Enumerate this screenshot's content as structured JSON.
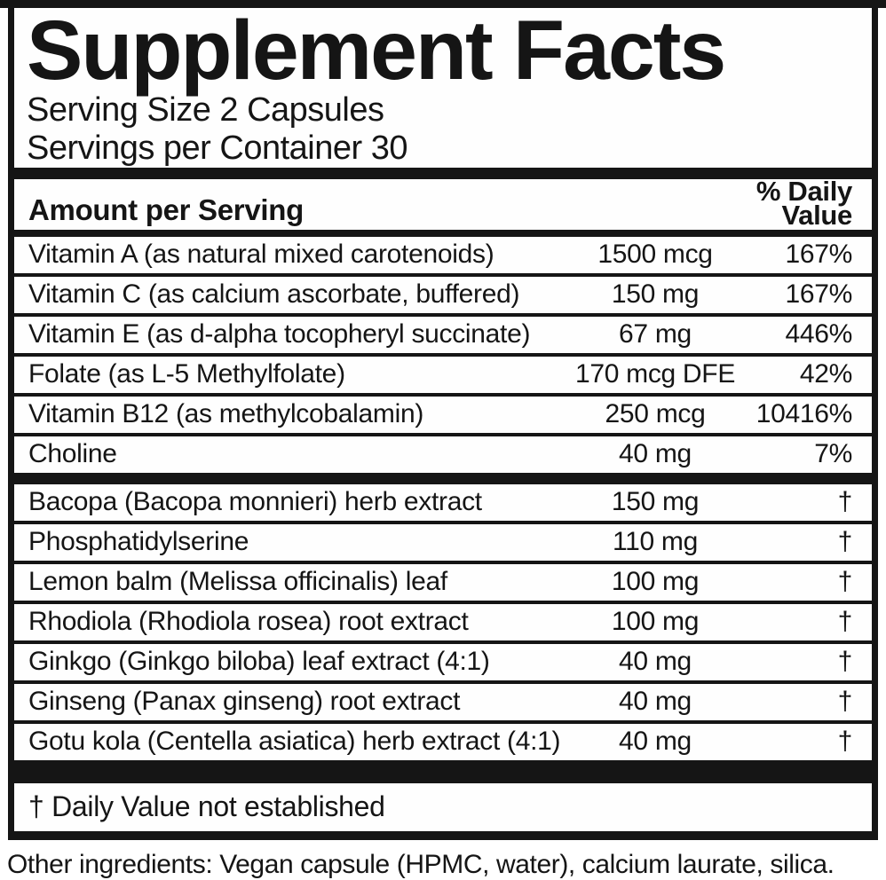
{
  "label": {
    "title": "Supplement Facts",
    "serving_size": "Serving Size 2 Capsules",
    "servings_per_container": "Servings per Container 30",
    "column_headers": {
      "amount_per_serving": "Amount per Serving",
      "daily_value_line1": "% Daily",
      "daily_value_line2": "Value"
    },
    "rows_vitamins": [
      {
        "name": "Vitamin A (as natural mixed carotenoids)",
        "amount": "1500 mcg",
        "dv": "167%"
      },
      {
        "name": "Vitamin C (as calcium ascorbate, buffered)",
        "amount": "150 mg",
        "dv": "167%"
      },
      {
        "name": "Vitamin E (as d-alpha tocopheryl succinate)",
        "amount": "67 mg",
        "dv": "446%"
      },
      {
        "name": "Folate (as L-5 Methylfolate)",
        "amount": "170 mcg DFE",
        "dv": "42%"
      },
      {
        "name": "Vitamin B12 (as methylcobalamin)",
        "amount": "250 mcg",
        "dv": "10416%"
      },
      {
        "name": "Choline",
        "amount": "40 mg",
        "dv": "7%"
      }
    ],
    "rows_botanicals": [
      {
        "name": "Bacopa (Bacopa monnieri) herb extract",
        "amount": "150 mg",
        "dv": "†"
      },
      {
        "name": "Phosphatidylserine",
        "amount": "110 mg",
        "dv": "†"
      },
      {
        "name": "Lemon balm (Melissa officinalis) leaf",
        "amount": "100 mg",
        "dv": "†"
      },
      {
        "name": "Rhodiola (Rhodiola rosea) root extract",
        "amount": "100 mg",
        "dv": "†"
      },
      {
        "name": "Ginkgo (Ginkgo biloba) leaf extract (4:1)",
        "amount": "40 mg",
        "dv": "†"
      },
      {
        "name": "Ginseng (Panax ginseng) root extract",
        "amount": "40 mg",
        "dv": "†"
      },
      {
        "name": "Gotu kola (Centella asiatica) herb extract (4:1)",
        "amount": "40 mg",
        "dv": "†"
      }
    ],
    "footnote": "† Daily Value not established",
    "other_ingredients": "Other ingredients: Vegan capsule (HPMC, water), calcium laurate, silica.",
    "colors": {
      "ink": "#151515",
      "background": "#ffffff"
    }
  }
}
